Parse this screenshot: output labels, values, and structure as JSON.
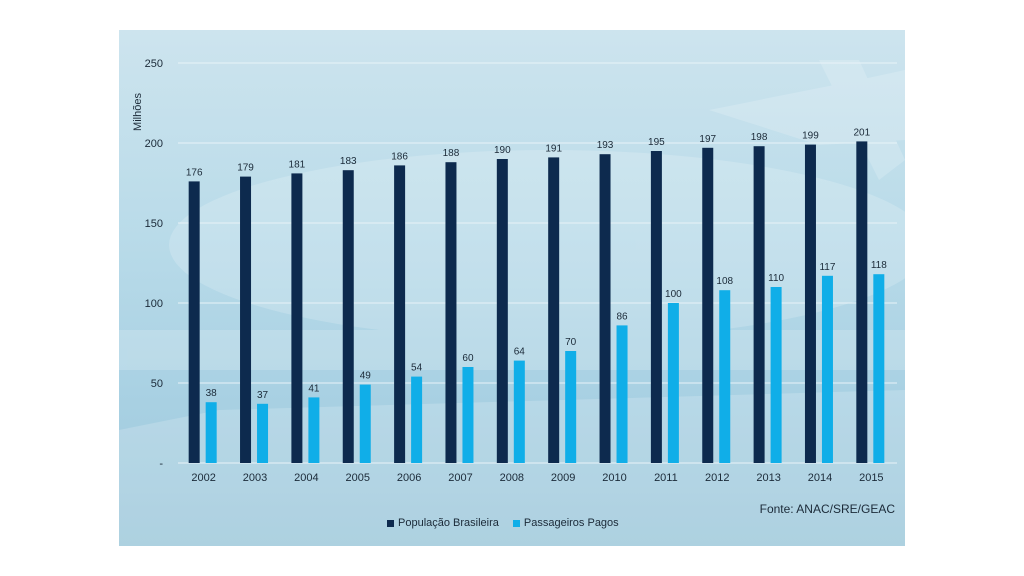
{
  "chart_data": {
    "type": "bar",
    "ylabel": "Milhões",
    "ylim": [
      0,
      250
    ],
    "yticks": [
      0,
      50,
      100,
      150,
      200,
      250
    ],
    "yticklabels": [
      "-",
      "50",
      "100",
      "150",
      "200",
      "250"
    ],
    "grid": true,
    "legend_position": "bottom",
    "categories": [
      "2002",
      "2003",
      "2004",
      "2005",
      "2006",
      "2007",
      "2008",
      "2009",
      "2010",
      "2011",
      "2012",
      "2013",
      "2014",
      "2015"
    ],
    "series": [
      {
        "name": "População Brasileira",
        "color": "#0d2a4e",
        "values": [
          176,
          179,
          181,
          183,
          186,
          188,
          190,
          191,
          193,
          195,
          197,
          198,
          199,
          201
        ]
      },
      {
        "name": "Passageiros Pagos",
        "color": "#10aee8",
        "values": [
          38,
          37,
          41,
          49,
          54,
          60,
          64,
          70,
          86,
          100,
          108,
          110,
          117,
          118
        ]
      }
    ]
  },
  "source_note": "Fonte: ANAC/SRE/GEAC"
}
